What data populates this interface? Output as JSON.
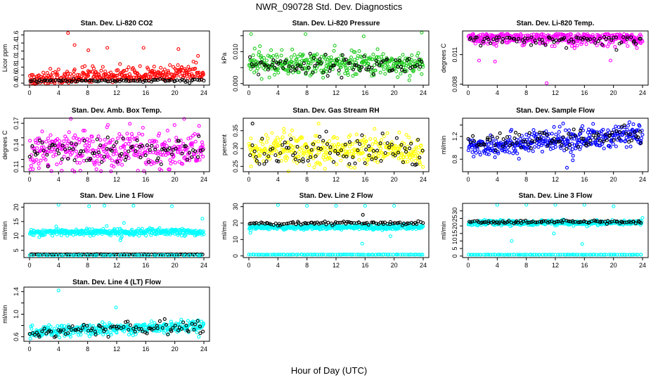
{
  "title": "NWR_090728  Std. Dev. Diagnostics",
  "xlabel": "Hour of Day (UTC)",
  "colors": {
    "red": "#ff0000",
    "green": "#22cc22",
    "magenta": "#ff00ff",
    "yellow": "#ffff00",
    "blue": "#0000ff",
    "cyan": "#00ffff",
    "black": "#000000"
  },
  "chart_data": [
    {
      "type": "scatter",
      "title": "Stan. Dev. Li-820 CO2",
      "ylabel": "Licor ppm",
      "xlim": [
        0,
        24
      ],
      "ylim": [
        0.35,
        1.7
      ],
      "xticks": [
        0,
        4,
        8,
        12,
        16,
        20,
        24
      ],
      "yticks": [
        0.4,
        0.6,
        0.8,
        1.0,
        1.2,
        1.4,
        1.6
      ],
      "ytick_labels": [
        "0.4",
        "0.6",
        "0.8",
        "1.0",
        "1.2",
        "1.4",
        "1.6"
      ],
      "series": [
        {
          "color": "red",
          "dist": "skew",
          "base": 0.42,
          "spread": 0.25,
          "trend": 0.07,
          "n": 330,
          "outliers": [
            [
              5.3,
              1.65
            ],
            [
              6.2,
              1.35
            ],
            [
              8.1,
              1.22
            ],
            [
              10.7,
              1.28
            ],
            [
              15.7,
              1.28
            ],
            [
              20.5,
              1.25
            ],
            [
              23.2,
              1.08
            ]
          ]
        },
        {
          "color": "black",
          "dist": "norm",
          "base": 0.46,
          "spread": 0.02,
          "trend": 0.0,
          "n": 90
        }
      ]
    },
    {
      "type": "scatter",
      "title": "Stan. Dev. Li-820 Pressure",
      "ylabel": "kPa",
      "xlim": [
        0,
        24
      ],
      "ylim": [
        -0.0005,
        0.0165
      ],
      "xticks": [
        0,
        4,
        8,
        12,
        16,
        20,
        24
      ],
      "yticks": [
        0.0,
        0.005,
        0.01,
        0.015
      ],
      "ytick_labels": [
        "0.000",
        "",
        "0.010",
        ""
      ],
      "series": [
        {
          "color": "green",
          "dist": "norm",
          "base": 0.0062,
          "spread": 0.0018,
          "trend": 0.0,
          "n": 380,
          "outliers": [
            [
              0.3,
              0.0155
            ],
            [
              7.8,
              0.0155
            ],
            [
              15.8,
              0.0148
            ],
            [
              23.8,
              0.016
            ],
            [
              0.8,
              0.011
            ],
            [
              20.5,
              0.002
            ]
          ]
        },
        {
          "color": "black",
          "dist": "norm",
          "base": 0.0058,
          "spread": 0.0015,
          "trend": 0.0,
          "n": 90
        }
      ]
    },
    {
      "type": "scatter",
      "title": "Stan. Dev. Li-820 Temp.",
      "ylabel": "degrees C",
      "xlim": [
        0,
        24
      ],
      "ylim": [
        0.0079,
        0.0134
      ],
      "xticks": [
        0,
        4,
        8,
        12,
        16,
        20,
        24
      ],
      "yticks": [
        0.008,
        0.011
      ],
      "ytick_labels": [
        "0.008",
        "0.011"
      ],
      "series": [
        {
          "color": "magenta",
          "dist": "top",
          "base": 0.0131,
          "spread": 0.0011,
          "trend": 0.0,
          "n": 380,
          "outliers": [
            [
              10.8,
              0.0081
            ],
            [
              1.5,
              0.0104
            ],
            [
              3.7,
              0.0103
            ],
            [
              19.6,
              0.0104
            ]
          ]
        },
        {
          "color": "black",
          "dist": "top",
          "base": 0.0128,
          "spread": 0.0008,
          "trend": 0.0,
          "n": 80
        }
      ]
    },
    {
      "type": "scatter",
      "title": "Stan. Dev. Amb. Box Temp.",
      "ylabel": "degrees C",
      "xlim": [
        0,
        24
      ],
      "ylim": [
        0.103,
        0.177
      ],
      "xticks": [
        0,
        4,
        8,
        12,
        16,
        20,
        24
      ],
      "yticks": [
        0.11,
        0.12,
        0.14,
        0.15,
        0.17
      ],
      "ytick_labels": [
        "0.11",
        "",
        "0.14",
        "",
        "0.17"
      ],
      "series": [
        {
          "color": "magenta",
          "dist": "norm",
          "base": 0.134,
          "spread": 0.013,
          "trend": 0.0,
          "n": 380
        },
        {
          "color": "black",
          "dist": "norm",
          "base": 0.131,
          "spread": 0.01,
          "trend": 0.0,
          "n": 90
        }
      ]
    },
    {
      "type": "scatter",
      "title": "Stan. Dev. Gas Stream RH",
      "ylabel": "percent",
      "xlim": [
        0,
        24
      ],
      "ylim": [
        0.235,
        0.385
      ],
      "xticks": [
        0,
        4,
        8,
        12,
        16,
        20,
        24
      ],
      "yticks": [
        0.25,
        0.3,
        0.35
      ],
      "ytick_labels": [
        "0.25",
        "0.30",
        "0.35"
      ],
      "series": [
        {
          "color": "yellow",
          "dist": "norm",
          "base": 0.295,
          "spread": 0.02,
          "trend": 0.0,
          "n": 380,
          "outliers": [
            [
              0.3,
              0.25
            ],
            [
              4.8,
              0.355
            ],
            [
              9.6,
              0.37
            ],
            [
              17.3,
              0.355
            ]
          ]
        },
        {
          "color": "black",
          "dist": "norm",
          "base": 0.29,
          "spread": 0.022,
          "trend": 0.0,
          "n": 90,
          "outliers": [
            [
              0.5,
              0.37
            ]
          ]
        }
      ]
    },
    {
      "type": "scatter",
      "title": "Stan. Dev. Sample Flow",
      "ylabel": "ml/min",
      "xlim": [
        0,
        24
      ],
      "ylim": [
        0.58,
        1.52
      ],
      "xticks": [
        0,
        4,
        8,
        12,
        16,
        20,
        24
      ],
      "yticks": [
        0.8,
        1.0,
        1.2,
        1.4
      ],
      "ytick_labels": [
        "0.8",
        "",
        "1.2",
        ""
      ],
      "series": [
        {
          "color": "blue",
          "dist": "norm",
          "base": 1.12,
          "spread": 0.1,
          "trend": 0.1,
          "n": 380,
          "outliers": [
            [
              13.6,
              0.65
            ],
            [
              14.4,
              0.78
            ],
            [
              17.2,
              1.42
            ],
            [
              22.2,
              1.45
            ]
          ]
        },
        {
          "color": "black",
          "dist": "norm",
          "base": 1.15,
          "spread": 0.07,
          "trend": 0.06,
          "n": 90
        }
      ]
    },
    {
      "type": "scatter",
      "title": "Stan. Dev. Line 1 Flow",
      "ylabel": "ml/min",
      "xlim": [
        0,
        24
      ],
      "ylim": [
        2.5,
        21.3
      ],
      "xticks": [
        0,
        4,
        8,
        12,
        16,
        20,
        24
      ],
      "yticks": [
        5,
        10,
        15,
        20
      ],
      "ytick_labels": [
        "5",
        "10",
        "15",
        "20"
      ],
      "series": [
        {
          "color": "cyan",
          "dist": "norm",
          "base": 11.3,
          "spread": 0.6,
          "trend": 0.0,
          "n": 380,
          "outliers": [
            [
              4.0,
              20.8
            ],
            [
              8.2,
              20.3
            ],
            [
              10.3,
              20.5
            ],
            [
              14.3,
              20.5
            ],
            [
              19.6,
              20.3
            ],
            [
              23.8,
              16.0
            ],
            [
              13.0,
              14.5
            ],
            [
              12.5,
              8.5
            ]
          ]
        },
        {
          "color": "black",
          "dist": "flat",
          "base": 3.6,
          "spread": 0.1,
          "trend": 0.0,
          "n": 110
        },
        {
          "color": "cyan",
          "dist": "flat",
          "base": 3.3,
          "spread": 0.1,
          "trend": 0.0,
          "n": 60
        }
      ]
    },
    {
      "type": "scatter",
      "title": "Stan. Dev. Line 2 Flow",
      "ylabel": "ml/min",
      "xlim": [
        0,
        24
      ],
      "ylim": [
        -1,
        32
      ],
      "xticks": [
        0,
        4,
        8,
        12,
        16,
        20,
        24
      ],
      "yticks": [
        0,
        10,
        20,
        30
      ],
      "ytick_labels": [
        "0",
        "10",
        "20",
        "30"
      ],
      "series": [
        {
          "color": "cyan",
          "dist": "norm",
          "base": 17.5,
          "spread": 0.7,
          "trend": 0.0,
          "n": 380,
          "outliers": [
            [
              0.2,
              14.0
            ],
            [
              4.0,
              31.0
            ],
            [
              8.0,
              30.5
            ],
            [
              12.0,
              30.5
            ],
            [
              16.0,
              30.5
            ],
            [
              20.0,
              30.5
            ],
            [
              15.6,
              7.5
            ],
            [
              19.5,
              12.0
            ]
          ]
        },
        {
          "color": "black",
          "dist": "norm",
          "base": 19.8,
          "spread": 0.6,
          "trend": 0.0,
          "n": 95,
          "outliers": [
            [
              15.7,
              25.0
            ]
          ]
        },
        {
          "color": "cyan",
          "dist": "flat",
          "base": 0.8,
          "spread": 0.15,
          "trend": 0.0,
          "n": 110
        }
      ]
    },
    {
      "type": "scatter",
      "title": "Stan. Dev. Line 3 Flow",
      "ylabel": "ml/min",
      "xlim": [
        0,
        24
      ],
      "ylim": [
        -1,
        35
      ],
      "xticks": [
        0,
        4,
        8,
        12,
        16,
        20,
        24
      ],
      "yticks": [
        0,
        5,
        10,
        15,
        20,
        25,
        30
      ],
      "ytick_labels": [
        "0",
        "5",
        "10",
        "15",
        "20",
        "25",
        "30"
      ],
      "series": [
        {
          "color": "cyan",
          "dist": "norm",
          "base": 22.0,
          "spread": 0.8,
          "trend": 0.0,
          "n": 380,
          "outliers": [
            [
              4.0,
              34.0
            ],
            [
              8.0,
              34.0
            ],
            [
              12.0,
              34.0
            ],
            [
              16.0,
              34.0
            ],
            [
              20.0,
              33.0
            ],
            [
              6.0,
              10.0
            ],
            [
              15.7,
              8.0
            ],
            [
              11.8,
              15.0
            ]
          ]
        },
        {
          "color": "black",
          "dist": "norm",
          "base": 22.7,
          "spread": 0.5,
          "trend": 0.0,
          "n": 95
        },
        {
          "color": "cyan",
          "dist": "flat",
          "base": 0.9,
          "spread": 0.15,
          "trend": 0.0,
          "n": 110
        }
      ]
    },
    {
      "type": "scatter",
      "title": "Stan. Dev. Line 4 (LT) Flow",
      "ylabel": "ml/min",
      "xlim": [
        0,
        24
      ],
      "ylim": [
        0.52,
        1.48
      ],
      "xticks": [
        0,
        4,
        8,
        12,
        16,
        20,
        24
      ],
      "yticks": [
        0.6,
        0.8,
        1.0,
        1.2,
        1.4
      ],
      "ytick_labels": [
        "0.6",
        "",
        "1.0",
        "",
        "1.4"
      ],
      "series": [
        {
          "color": "cyan",
          "dist": "norm",
          "base": 0.74,
          "spread": 0.05,
          "trend": 0.06,
          "n": 380,
          "outliers": [
            [
              4.0,
              1.42
            ],
            [
              11.9,
              1.12
            ],
            [
              23.3,
              0.6
            ]
          ]
        },
        {
          "color": "black",
          "dist": "norm",
          "base": 0.74,
          "spread": 0.05,
          "trend": 0.05,
          "n": 90
        }
      ]
    }
  ]
}
